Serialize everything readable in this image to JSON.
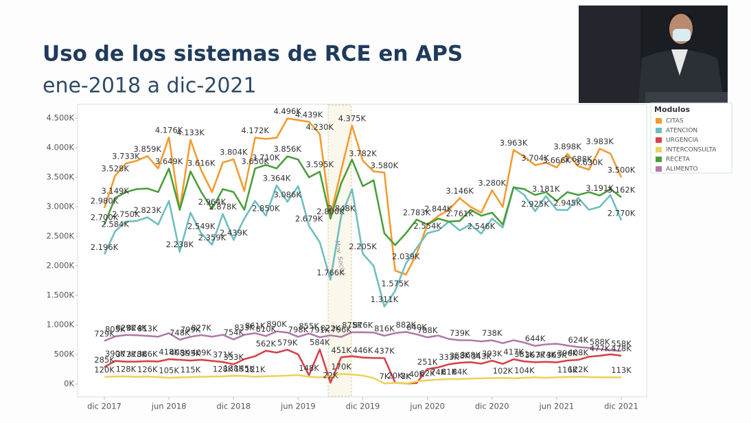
{
  "chart_data": {
    "type": "line",
    "title": "Uso de los sistemas de RCE en APS",
    "subtitle": "ene-2018 a dic-2021",
    "annotation": "Mov. Social",
    "legend_title": "Modulos",
    "legend": "right",
    "grid": false,
    "categories": [
      "dic 2017",
      null,
      null,
      null,
      null,
      null,
      "jun 2018",
      null,
      null,
      null,
      null,
      null,
      "dic 2018",
      null,
      null,
      null,
      null,
      null,
      "jun 2019",
      null,
      null,
      null,
      null,
      null,
      "dic 2019",
      null,
      null,
      null,
      null,
      null,
      "jun 2020",
      null,
      null,
      null,
      null,
      null,
      "dic 2020",
      null,
      null,
      null,
      null,
      null,
      "jun 2021",
      null,
      null,
      null,
      null,
      null,
      "dic 2021"
    ],
    "ylim": [
      -220,
      4700
    ],
    "yticks": [
      {
        "value": 0,
        "label": "0K"
      },
      {
        "value": 500,
        "label": "500K"
      },
      {
        "value": 1000,
        "label": "1.000K"
      },
      {
        "value": 1500,
        "label": "1.500K"
      },
      {
        "value": 2000,
        "label": "2.000K"
      },
      {
        "value": 2500,
        "label": "2.500K"
      },
      {
        "value": 3000,
        "label": "3.000K"
      },
      {
        "value": 3500,
        "label": "3.500K"
      },
      {
        "value": 4000,
        "label": "4.000K"
      },
      {
        "value": 4500,
        "label": "4.500K"
      }
    ],
    "series": [
      {
        "name": "CITAS",
        "color": "#f29b30",
        "values": [
          2980,
          3528,
          3733,
          3780,
          3859,
          3650,
          4176,
          2950,
          4133,
          3616,
          3250,
          3750,
          3804,
          3270,
          4172,
          4150,
          4170,
          4496,
          4470,
          4439,
          4230,
          2850,
          3620,
          4375,
          3782,
          3600,
          3580,
          1920,
          1850,
          2200,
          2700,
          2844,
          2950,
          3146,
          3000,
          2900,
          3280,
          3000,
          3963,
          3850,
          3704,
          3750,
          3666,
          3898,
          3688,
          3630,
          3983,
          3900,
          3500
        ],
        "value_labels": [
          "2.980K",
          "3.528K",
          "3.733K",
          null,
          "3.859K",
          null,
          "4.176K",
          null,
          "4.133K",
          "3.616K",
          null,
          null,
          "3.804K",
          null,
          "4.172K",
          null,
          null,
          "4.496K",
          null,
          "4.439K",
          "4.230K",
          null,
          null,
          "4.375K",
          "3.782K",
          null,
          "3.580K",
          null,
          null,
          null,
          null,
          "2.844K",
          null,
          "3.146K",
          null,
          null,
          "3.280K",
          null,
          "3.963K",
          null,
          "3.704K",
          null,
          "3.666K",
          "3.898K",
          "3.688K",
          "3.630K",
          "3.983K",
          null,
          "3.500K"
        ]
      },
      {
        "name": "ATENCION",
        "color": "#6fbdbf",
        "values": [
          2196,
          2584,
          2750,
          2760,
          2823,
          2700,
          3100,
          2238,
          2900,
          2549,
          2359,
          2878,
          2439,
          2800,
          3100,
          2850,
          3364,
          3086,
          3350,
          2679,
          2400,
          1766,
          2848,
          3300,
          2205,
          2000,
          1311,
          1575,
          2039,
          2300,
          2554,
          2600,
          2750,
          2600,
          2700,
          2546,
          2800,
          2650,
          3330,
          3200,
          2925,
          3181,
          2950,
          2945,
          3150,
          2950,
          3000,
          3200,
          2770
        ],
        "value_labels": [
          "2.196K",
          "2.584K",
          "2.750K",
          null,
          "2.823K",
          null,
          null,
          "2.238K",
          null,
          "2.549K",
          "2.359K",
          "2.878K",
          "2.439K",
          null,
          null,
          "2.850K",
          "3.364K",
          "3.086K",
          null,
          "2.679K",
          null,
          "1.766K",
          "2.848K",
          null,
          "2.205K",
          null,
          "1.311K",
          "1.575K",
          "2.039K",
          null,
          "2.554K",
          null,
          null,
          null,
          null,
          "2.546K",
          null,
          null,
          null,
          null,
          "2.925K",
          "3.181K",
          null,
          "2.945K",
          null,
          null,
          null,
          null,
          "2.770K"
        ]
      },
      {
        "name": "URGENCIA",
        "color": "#d8414a",
        "values": [
          285,
          390,
          377,
          378,
          386,
          380,
          418,
          408,
          395,
          409,
          390,
          371,
          333,
          420,
          470,
          562,
          530,
          579,
          500,
          148,
          584,
          22,
          451,
          470,
          446,
          440,
          437,
          20,
          8,
          15,
          251,
          280,
          333,
          358,
          368,
          343,
          393,
          340,
          417,
          381,
          367,
          374,
          365,
          396,
          408,
          460,
          477,
          500,
          478
        ],
        "value_labels": [
          "285K",
          "390K",
          "377K",
          "378K",
          "386K",
          null,
          "418K",
          "408K",
          "395K",
          "409K",
          null,
          "371K",
          "333K",
          null,
          null,
          "562K",
          null,
          "579K",
          null,
          "148K",
          "584K",
          "22K",
          "451K",
          null,
          "446K",
          null,
          "437K",
          null,
          "8K",
          null,
          "251K",
          null,
          "333K",
          "358K",
          "368K",
          "343K",
          "393K",
          null,
          "417K",
          "381K",
          "367K",
          "374K",
          "365K",
          "396K",
          "408K",
          null,
          "477K",
          null,
          "478K"
        ]
      },
      {
        "name": "INTERCONSULTA",
        "color": "#ecd25a",
        "values": [
          120,
          125,
          128,
          120,
          126,
          115,
          105,
          110,
          115,
          120,
          125,
          128,
          138,
          135,
          121,
          130,
          135,
          140,
          150,
          121,
          110,
          130,
          170,
          160,
          140,
          100,
          7,
          20,
          7,
          40,
          62,
          74,
          81,
          84,
          90,
          95,
          100,
          102,
          95,
          104,
          110,
          104,
          110,
          116,
          122,
          115,
          113,
          110,
          113
        ],
        "value_labels": [
          "120K",
          null,
          "128K",
          null,
          "126K",
          null,
          "105K",
          null,
          "115K",
          null,
          null,
          "128K",
          "138K",
          "135K",
          "121K",
          null,
          null,
          null,
          null,
          null,
          null,
          null,
          "170K",
          null,
          null,
          null,
          "7K",
          "20K",
          "7K",
          "40K",
          "62K",
          "74K",
          "81K",
          "84K",
          null,
          null,
          null,
          "102K",
          null,
          "104K",
          null,
          null,
          null,
          "116K",
          "122K",
          null,
          null,
          null,
          "113K"
        ]
      },
      {
        "name": "RECETA",
        "color": "#4a9e3a",
        "values": [
          2700,
          3149,
          3250,
          3300,
          3310,
          3250,
          3649,
          2950,
          3600,
          3250,
          2964,
          3300,
          3250,
          2950,
          3650,
          3710,
          3650,
          3856,
          3800,
          3500,
          3595,
          2800,
          3400,
          3800,
          3350,
          3450,
          2550,
          2350,
          2550,
          2783,
          2700,
          2800,
          2750,
          2761,
          2950,
          2850,
          2900,
          2700,
          3330,
          3300,
          3200,
          3250,
          3100,
          3250,
          3200,
          3250,
          3191,
          3300,
          3162
        ],
        "value_labels": [
          "2.700K",
          "3.149K",
          null,
          null,
          null,
          null,
          "3.649K",
          null,
          null,
          null,
          "2.964K",
          null,
          null,
          null,
          "3.650K",
          "3.710K",
          null,
          "3.856K",
          null,
          null,
          "3.595K",
          "2.800K",
          null,
          null,
          null,
          null,
          null,
          null,
          null,
          "2.783K",
          null,
          null,
          null,
          "2.761K",
          null,
          null,
          null,
          null,
          null,
          null,
          null,
          null,
          null,
          null,
          null,
          null,
          "3.191K",
          null,
          "3.162K"
        ]
      },
      {
        "name": "ALIMENTO",
        "color": "#b07aa8",
        "values": [
          729,
          805,
          829,
          824,
          813,
          800,
          860,
          748,
          799,
          827,
          800,
          833,
          754,
          833,
          861,
          810,
          890,
          870,
          798,
          855,
          791,
          822,
          796,
          875,
          876,
          870,
          816,
          860,
          882,
          840,
          788,
          820,
          760,
          739,
          740,
          720,
          738,
          690,
          740,
          700,
          644,
          670,
          680,
          650,
          624,
          610,
          588,
          570,
          558
        ],
        "value_labels": [
          "729K",
          "805K",
          "829K",
          "824K",
          "813K",
          null,
          null,
          "748K",
          "799K",
          "827K",
          null,
          null,
          "754K",
          "833K",
          "861K",
          "810K",
          "890K",
          null,
          "798K",
          "855K",
          "791K",
          "822K",
          "796K",
          "875K",
          "876K",
          null,
          "816K",
          null,
          "882K",
          "840K",
          "788K",
          null,
          null,
          "739K",
          null,
          null,
          "738K",
          null,
          null,
          null,
          "644K",
          null,
          null,
          null,
          "624K",
          null,
          "588K",
          null,
          "558K"
        ]
      }
    ]
  }
}
